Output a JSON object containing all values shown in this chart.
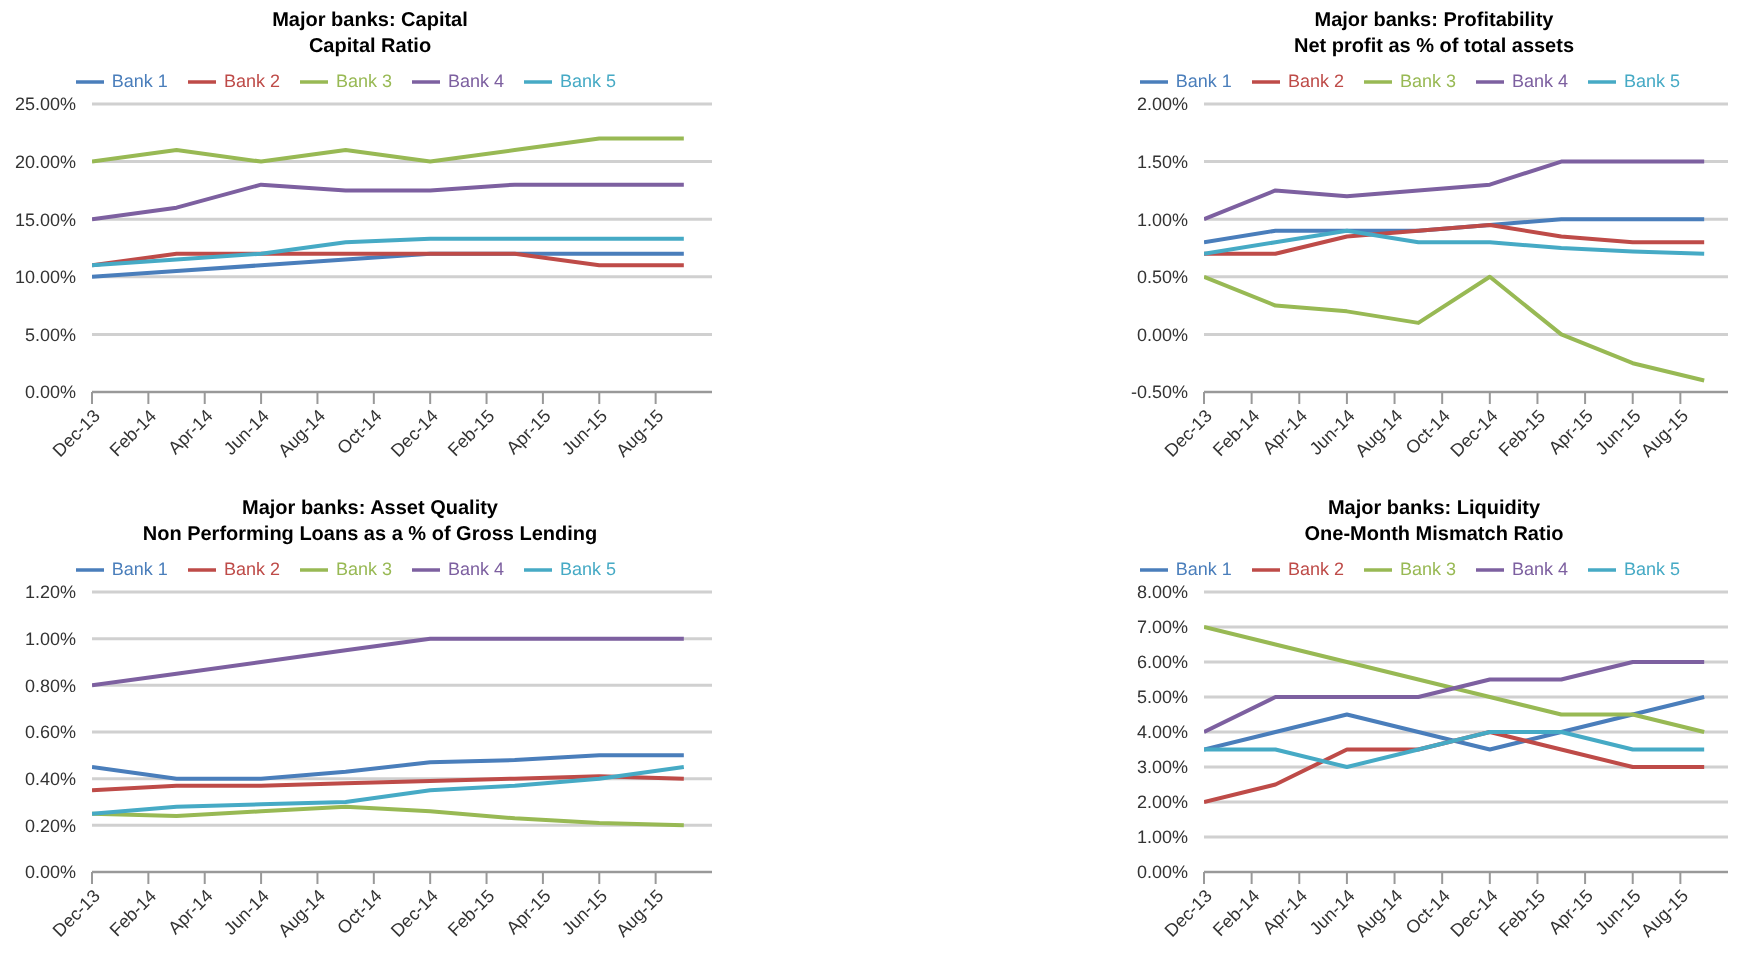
{
  "chart_data": [
    {
      "type": "line",
      "title": "Major banks: Capital",
      "subtitle": "Capital Ratio",
      "x": [
        "2013-12",
        "2014-03",
        "2014-06",
        "2014-09",
        "2014-12",
        "2015-03",
        "2015-06",
        "2015-09"
      ],
      "series": [
        {
          "name": "Bank 1",
          "color": "#4a7ebb",
          "values": [
            10,
            10.5,
            11,
            11.5,
            12,
            12,
            12,
            12
          ]
        },
        {
          "name": "Bank 2",
          "color": "#be4b48",
          "values": [
            11,
            12,
            12,
            12,
            12,
            12,
            11,
            11
          ]
        },
        {
          "name": "Bank 3",
          "color": "#98b954",
          "values": [
            20,
            21,
            20,
            21,
            20,
            21,
            22,
            22
          ]
        },
        {
          "name": "Bank 4",
          "color": "#7d60a0",
          "values": [
            15,
            16,
            18,
            17.5,
            17.5,
            18,
            18,
            18
          ]
        },
        {
          "name": "Bank 5",
          "color": "#46aac5",
          "values": [
            11,
            11.5,
            12,
            13,
            13.3,
            13.3,
            13.3,
            13.3
          ]
        }
      ],
      "xlim": [
        "2013-12",
        "2015-10"
      ],
      "xticks": [
        {
          "value": "2013-12",
          "label": "Dec-13"
        },
        {
          "value": "2014-02",
          "label": "Feb-14"
        },
        {
          "value": "2014-04",
          "label": "Apr-14"
        },
        {
          "value": "2014-06",
          "label": "Jun-14"
        },
        {
          "value": "2014-08",
          "label": "Aug-14"
        },
        {
          "value": "2014-10",
          "label": "Oct-14"
        },
        {
          "value": "2014-12",
          "label": "Dec-14"
        },
        {
          "value": "2015-02",
          "label": "Feb-15"
        },
        {
          "value": "2015-04",
          "label": "Apr-15"
        },
        {
          "value": "2015-06",
          "label": "Jun-15"
        },
        {
          "value": "2015-08",
          "label": "Aug-15"
        }
      ],
      "ylim": [
        0,
        25
      ],
      "yticks": [
        {
          "value": 0,
          "label": "0.00%"
        },
        {
          "value": 5,
          "label": "5.00%"
        },
        {
          "value": 10,
          "label": "10.00%"
        },
        {
          "value": 15,
          "label": "15.00%"
        },
        {
          "value": 20,
          "label": "20.00%"
        },
        {
          "value": 25,
          "label": "25.00%"
        }
      ],
      "grid": "y",
      "legend": "top",
      "marker": "none"
    },
    {
      "type": "line",
      "title": "Major banks: Profitability",
      "subtitle": "Net profit as % of total assets",
      "x": [
        "2013-12",
        "2014-03",
        "2014-06",
        "2014-09",
        "2014-12",
        "2015-03",
        "2015-06",
        "2015-09"
      ],
      "series": [
        {
          "name": "Bank 1",
          "color": "#4a7ebb",
          "values": [
            0.8,
            0.9,
            0.9,
            0.9,
            0.95,
            1.0,
            1.0,
            1.0
          ]
        },
        {
          "name": "Bank 2",
          "color": "#be4b48",
          "values": [
            0.7,
            0.7,
            0.85,
            0.9,
            0.95,
            0.85,
            0.8,
            0.8
          ]
        },
        {
          "name": "Bank 3",
          "color": "#98b954",
          "values": [
            0.5,
            0.25,
            0.2,
            0.1,
            0.5,
            0,
            -0.25,
            -0.4
          ]
        },
        {
          "name": "Bank 4",
          "color": "#7d60a0",
          "values": [
            1.0,
            1.25,
            1.2,
            1.25,
            1.3,
            1.5,
            1.5,
            1.5
          ]
        },
        {
          "name": "Bank 5",
          "color": "#46aac5",
          "values": [
            0.7,
            0.8,
            0.9,
            0.8,
            0.8,
            0.75,
            0.72,
            0.7
          ]
        }
      ],
      "xlim": [
        "2013-12",
        "2015-10"
      ],
      "xticks": [
        {
          "value": "2013-12",
          "label": "Dec-13"
        },
        {
          "value": "2014-02",
          "label": "Feb-14"
        },
        {
          "value": "2014-04",
          "label": "Apr-14"
        },
        {
          "value": "2014-06",
          "label": "Jun-14"
        },
        {
          "value": "2014-08",
          "label": "Aug-14"
        },
        {
          "value": "2014-10",
          "label": "Oct-14"
        },
        {
          "value": "2014-12",
          "label": "Dec-14"
        },
        {
          "value": "2015-02",
          "label": "Feb-15"
        },
        {
          "value": "2015-04",
          "label": "Apr-15"
        },
        {
          "value": "2015-06",
          "label": "Jun-15"
        },
        {
          "value": "2015-08",
          "label": "Aug-15"
        }
      ],
      "ylim": [
        -0.5,
        2
      ],
      "yticks": [
        {
          "value": -0.5,
          "label": "-0.50%"
        },
        {
          "value": 0,
          "label": "0.00%"
        },
        {
          "value": 0.5,
          "label": "0.50%"
        },
        {
          "value": 1,
          "label": "1.00%"
        },
        {
          "value": 1.5,
          "label": "1.50%"
        },
        {
          "value": 2,
          "label": "2.00%"
        }
      ],
      "grid": "y",
      "legend": "top",
      "marker": "none"
    },
    {
      "type": "line",
      "title": "Major banks: Asset Quality",
      "subtitle": "Non Performing Loans as a % of Gross Lending",
      "x": [
        "2013-12",
        "2014-03",
        "2014-06",
        "2014-09",
        "2014-12",
        "2015-03",
        "2015-06",
        "2015-09"
      ],
      "series": [
        {
          "name": "Bank 1",
          "color": "#4a7ebb",
          "values": [
            0.45,
            0.4,
            0.4,
            0.43,
            0.47,
            0.48,
            0.5,
            0.5
          ]
        },
        {
          "name": "Bank 2",
          "color": "#be4b48",
          "values": [
            0.35,
            0.37,
            0.37,
            0.38,
            0.39,
            0.4,
            0.41,
            0.4
          ]
        },
        {
          "name": "Bank 3",
          "color": "#98b954",
          "values": [
            0.25,
            0.24,
            0.26,
            0.28,
            0.26,
            0.23,
            0.21,
            0.2
          ]
        },
        {
          "name": "Bank 4",
          "color": "#7d60a0",
          "values": [
            0.8,
            0.85,
            0.9,
            0.95,
            1.0,
            1.0,
            1.0,
            1.0
          ]
        },
        {
          "name": "Bank 5",
          "color": "#46aac5",
          "values": [
            0.25,
            0.28,
            0.29,
            0.3,
            0.35,
            0.37,
            0.4,
            0.45
          ]
        }
      ],
      "xlim": [
        "2013-12",
        "2015-10"
      ],
      "xticks": [
        {
          "value": "2013-12",
          "label": "Dec-13"
        },
        {
          "value": "2014-02",
          "label": "Feb-14"
        },
        {
          "value": "2014-04",
          "label": "Apr-14"
        },
        {
          "value": "2014-06",
          "label": "Jun-14"
        },
        {
          "value": "2014-08",
          "label": "Aug-14"
        },
        {
          "value": "2014-10",
          "label": "Oct-14"
        },
        {
          "value": "2014-12",
          "label": "Dec-14"
        },
        {
          "value": "2015-02",
          "label": "Feb-15"
        },
        {
          "value": "2015-04",
          "label": "Apr-15"
        },
        {
          "value": "2015-06",
          "label": "Jun-15"
        },
        {
          "value": "2015-08",
          "label": "Aug-15"
        }
      ],
      "ylim": [
        0,
        1.2
      ],
      "yticks": [
        {
          "value": 0,
          "label": "0.00%"
        },
        {
          "value": 0.2,
          "label": "0.20%"
        },
        {
          "value": 0.4,
          "label": "0.40%"
        },
        {
          "value": 0.6,
          "label": "0.60%"
        },
        {
          "value": 0.8,
          "label": "0.80%"
        },
        {
          "value": 1,
          "label": "1.00%"
        },
        {
          "value": 1.2,
          "label": "1.20%"
        }
      ],
      "grid": "y",
      "legend": "top",
      "marker": "none"
    },
    {
      "type": "line",
      "title": "Major banks: Liquidity",
      "subtitle": "One-Month Mismatch Ratio",
      "x": [
        "2013-12",
        "2014-03",
        "2014-06",
        "2014-09",
        "2014-12",
        "2015-03",
        "2015-06",
        "2015-09"
      ],
      "series": [
        {
          "name": "Bank 1",
          "color": "#4a7ebb",
          "values": [
            3.5,
            4,
            4.5,
            4,
            3.5,
            4,
            4.5,
            5
          ]
        },
        {
          "name": "Bank 2",
          "color": "#be4b48",
          "values": [
            2,
            2.5,
            3.5,
            3.5,
            4,
            3.5,
            3,
            3
          ]
        },
        {
          "name": "Bank 3",
          "color": "#98b954",
          "values": [
            7,
            6.5,
            6,
            5.5,
            5,
            4.5,
            4.5,
            4
          ]
        },
        {
          "name": "Bank 4",
          "color": "#7d60a0",
          "values": [
            4,
            5,
            5,
            5,
            5.5,
            5.5,
            6,
            6
          ]
        },
        {
          "name": "Bank 5",
          "color": "#46aac5",
          "values": [
            3.5,
            3.5,
            3,
            3.5,
            4,
            4,
            3.5,
            3.5
          ]
        }
      ],
      "xlim": [
        "2013-12",
        "2015-10"
      ],
      "xticks": [
        {
          "value": "2013-12",
          "label": "Dec-13"
        },
        {
          "value": "2014-02",
          "label": "Feb-14"
        },
        {
          "value": "2014-04",
          "label": "Apr-14"
        },
        {
          "value": "2014-06",
          "label": "Jun-14"
        },
        {
          "value": "2014-08",
          "label": "Aug-14"
        },
        {
          "value": "2014-10",
          "label": "Oct-14"
        },
        {
          "value": "2014-12",
          "label": "Dec-14"
        },
        {
          "value": "2015-02",
          "label": "Feb-15"
        },
        {
          "value": "2015-04",
          "label": "Apr-15"
        },
        {
          "value": "2015-06",
          "label": "Jun-15"
        },
        {
          "value": "2015-08",
          "label": "Aug-15"
        }
      ],
      "ylim": [
        0,
        8
      ],
      "yticks": [
        {
          "value": 0,
          "label": "0.00%"
        },
        {
          "value": 1,
          "label": "1.00%"
        },
        {
          "value": 2,
          "label": "2.00%"
        },
        {
          "value": 3,
          "label": "3.00%"
        },
        {
          "value": 4,
          "label": "4.00%"
        },
        {
          "value": 5,
          "label": "5.00%"
        },
        {
          "value": 6,
          "label": "6.00%"
        },
        {
          "value": 7,
          "label": "7.00%"
        },
        {
          "value": 8,
          "label": "8.00%"
        }
      ],
      "grid": "y",
      "legend": "top",
      "marker": "none"
    }
  ]
}
